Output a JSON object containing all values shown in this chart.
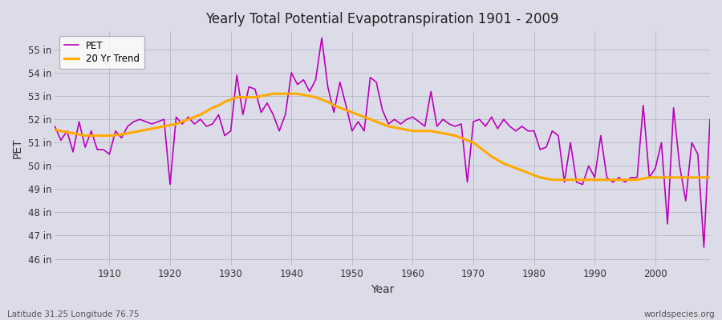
{
  "title": "Yearly Total Potential Evapotranspiration 1901 - 2009",
  "xlabel": "Year",
  "ylabel": "PET",
  "subtitle_left": "Latitude 31.25 Longitude 76.75",
  "subtitle_right": "worldspecies.org",
  "pet_color": "#bb00bb",
  "trend_color": "#ffaa00",
  "background_color": "#dcdce8",
  "ylim_min": 45.7,
  "ylim_max": 55.8,
  "years": [
    1901,
    1902,
    1903,
    1904,
    1905,
    1906,
    1907,
    1908,
    1909,
    1910,
    1911,
    1912,
    1913,
    1914,
    1915,
    1916,
    1917,
    1918,
    1919,
    1920,
    1921,
    1922,
    1923,
    1924,
    1925,
    1926,
    1927,
    1928,
    1929,
    1930,
    1931,
    1932,
    1933,
    1934,
    1935,
    1936,
    1937,
    1938,
    1939,
    1940,
    1941,
    1942,
    1943,
    1944,
    1945,
    1946,
    1947,
    1948,
    1949,
    1950,
    1951,
    1952,
    1953,
    1954,
    1955,
    1956,
    1957,
    1958,
    1959,
    1960,
    1961,
    1962,
    1963,
    1964,
    1965,
    1966,
    1967,
    1968,
    1969,
    1970,
    1971,
    1972,
    1973,
    1974,
    1975,
    1976,
    1977,
    1978,
    1979,
    1980,
    1981,
    1982,
    1983,
    1984,
    1985,
    1986,
    1987,
    1988,
    1989,
    1990,
    1991,
    1992,
    1993,
    1994,
    1995,
    1996,
    1997,
    1998,
    1999,
    2000,
    2001,
    2002,
    2003,
    2004,
    2005,
    2006,
    2007,
    2008,
    2009
  ],
  "pet_values": [
    51.7,
    51.1,
    51.5,
    50.6,
    51.9,
    50.8,
    51.5,
    50.7,
    50.7,
    50.5,
    51.5,
    51.2,
    51.7,
    51.9,
    52.0,
    51.9,
    51.8,
    51.9,
    52.0,
    49.2,
    52.1,
    51.8,
    52.1,
    51.8,
    52.0,
    51.7,
    51.8,
    52.2,
    51.3,
    51.5,
    53.9,
    52.2,
    53.4,
    53.3,
    52.3,
    52.7,
    52.2,
    51.5,
    52.2,
    54.0,
    53.5,
    53.7,
    53.2,
    53.7,
    55.5,
    53.4,
    52.3,
    53.6,
    52.6,
    51.5,
    51.9,
    51.5,
    53.8,
    53.6,
    52.4,
    51.8,
    52.0,
    51.8,
    52.0,
    52.1,
    51.9,
    51.7,
    53.2,
    51.7,
    52.0,
    51.8,
    51.7,
    51.8,
    49.3,
    51.9,
    52.0,
    51.7,
    52.1,
    51.6,
    52.0,
    51.7,
    51.5,
    51.7,
    51.5,
    51.5,
    50.7,
    50.8,
    51.5,
    51.3,
    49.3,
    51.0,
    49.3,
    49.2,
    50.0,
    49.5,
    51.3,
    49.5,
    49.3,
    49.5,
    49.3,
    49.5,
    49.5,
    52.6,
    49.5,
    49.9,
    51.0,
    47.5,
    52.5,
    50.0,
    48.5,
    51.0,
    50.5,
    46.5,
    52.0
  ],
  "trend_values": [
    51.55,
    51.5,
    51.45,
    51.4,
    51.35,
    51.3,
    51.3,
    51.3,
    51.3,
    51.3,
    51.32,
    51.35,
    51.4,
    51.45,
    51.5,
    51.55,
    51.6,
    51.65,
    51.7,
    51.75,
    51.8,
    51.9,
    52.0,
    52.1,
    52.2,
    52.35,
    52.5,
    52.6,
    52.75,
    52.85,
    52.95,
    52.95,
    52.95,
    52.95,
    53.0,
    53.05,
    53.1,
    53.1,
    53.1,
    53.1,
    53.1,
    53.05,
    53.0,
    52.95,
    52.85,
    52.75,
    52.6,
    52.5,
    52.4,
    52.3,
    52.2,
    52.1,
    52.0,
    51.9,
    51.8,
    51.7,
    51.65,
    51.6,
    51.55,
    51.5,
    51.5,
    51.5,
    51.5,
    51.45,
    51.4,
    51.35,
    51.3,
    51.2,
    51.1,
    51.0,
    50.8,
    50.6,
    50.4,
    50.25,
    50.1,
    50.0,
    49.9,
    49.8,
    49.7,
    49.6,
    49.5,
    49.45,
    49.4,
    49.4,
    49.4,
    49.4,
    49.4,
    49.4,
    49.4,
    49.4,
    49.4,
    49.4,
    49.4,
    49.4,
    49.4,
    49.4,
    49.4,
    49.45,
    49.5,
    49.5,
    49.5,
    49.5,
    49.5,
    49.5,
    49.5,
    49.5,
    49.5,
    49.5,
    49.5
  ]
}
